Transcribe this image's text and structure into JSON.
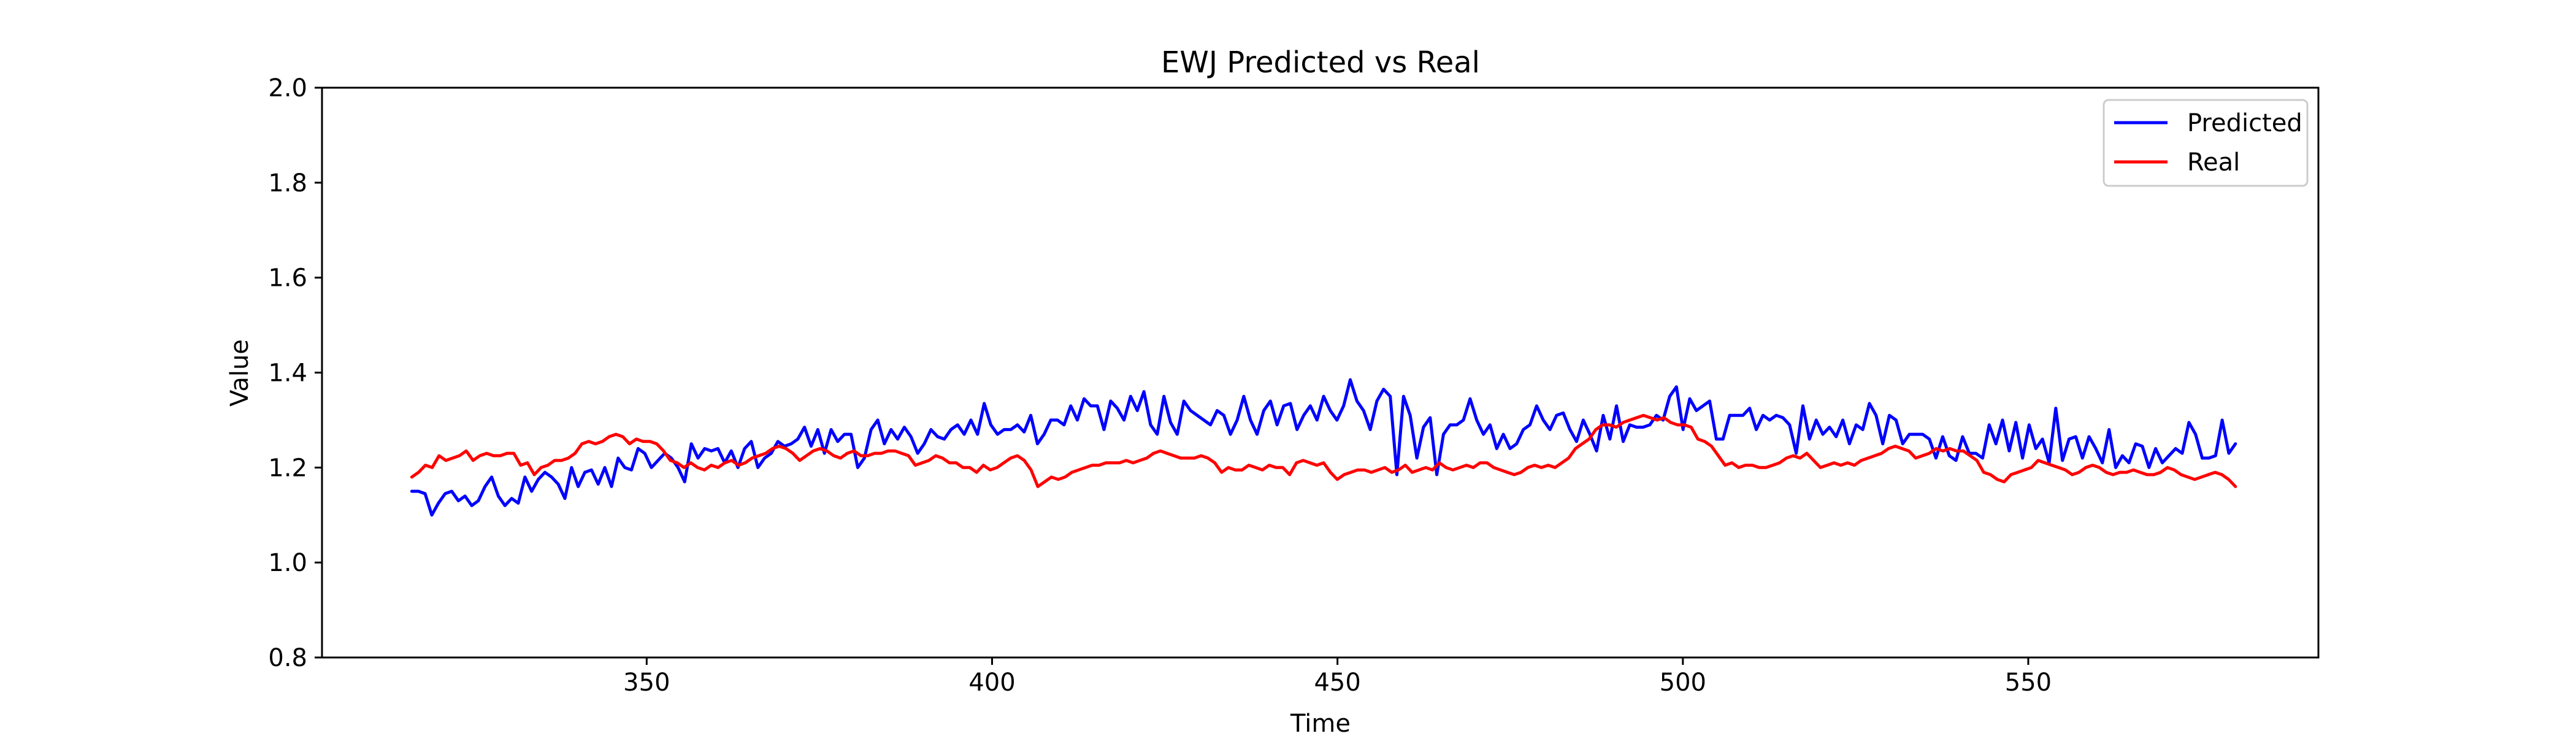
{
  "chart_data": {
    "type": "line",
    "title": "EWJ Predicted vs Real",
    "xlabel": "Time",
    "ylabel": "Value",
    "xlim": [
      303,
      592
    ],
    "ylim": [
      0.8,
      2.0
    ],
    "xticks": [
      350,
      400,
      450,
      500,
      550
    ],
    "yticks": [
      0.8,
      1.0,
      1.2,
      1.4,
      1.6,
      1.8,
      2.0
    ],
    "xtick_labels": [
      "350",
      "400",
      "450",
      "500",
      "550"
    ],
    "ytick_labels": [
      "0.8",
      "1.0",
      "1.2",
      "1.4",
      "1.6",
      "1.8",
      "2.0"
    ],
    "grid": false,
    "legend_position": "upper right",
    "x_start": 316,
    "x_end": 580,
    "series": [
      {
        "name": "Predicted",
        "color": "#0000ff",
        "values": [
          1.15,
          1.15,
          1.145,
          1.1,
          1.125,
          1.145,
          1.15,
          1.13,
          1.14,
          1.12,
          1.13,
          1.16,
          1.18,
          1.14,
          1.12,
          1.135,
          1.125,
          1.18,
          1.15,
          1.175,
          1.19,
          1.18,
          1.165,
          1.135,
          1.2,
          1.16,
          1.19,
          1.195,
          1.165,
          1.2,
          1.16,
          1.22,
          1.2,
          1.195,
          1.24,
          1.23,
          1.2,
          1.215,
          1.23,
          1.22,
          1.2,
          1.17,
          1.25,
          1.22,
          1.24,
          1.235,
          1.24,
          1.21,
          1.235,
          1.2,
          1.24,
          1.255,
          1.2,
          1.22,
          1.23,
          1.255,
          1.245,
          1.25,
          1.26,
          1.285,
          1.245,
          1.28,
          1.23,
          1.28,
          1.255,
          1.27,
          1.27,
          1.2,
          1.22,
          1.28,
          1.3,
          1.25,
          1.28,
          1.26,
          1.285,
          1.265,
          1.23,
          1.25,
          1.28,
          1.265,
          1.26,
          1.28,
          1.29,
          1.27,
          1.3,
          1.27,
          1.335,
          1.29,
          1.27,
          1.28,
          1.28,
          1.29,
          1.275,
          1.31,
          1.25,
          1.27,
          1.3,
          1.3,
          1.29,
          1.33,
          1.3,
          1.345,
          1.33,
          1.33,
          1.28,
          1.34,
          1.325,
          1.3,
          1.35,
          1.32,
          1.36,
          1.29,
          1.27,
          1.35,
          1.295,
          1.27,
          1.34,
          1.32,
          1.31,
          1.3,
          1.29,
          1.32,
          1.31,
          1.27,
          1.3,
          1.35,
          1.3,
          1.27,
          1.32,
          1.34,
          1.29,
          1.33,
          1.335,
          1.28,
          1.31,
          1.33,
          1.3,
          1.35,
          1.32,
          1.3,
          1.33,
          1.385,
          1.34,
          1.32,
          1.28,
          1.34,
          1.365,
          1.35,
          1.185,
          1.35,
          1.31,
          1.22,
          1.285,
          1.305,
          1.185,
          1.27,
          1.29,
          1.29,
          1.3,
          1.345,
          1.3,
          1.27,
          1.29,
          1.24,
          1.27,
          1.24,
          1.25,
          1.28,
          1.29,
          1.33,
          1.3,
          1.28,
          1.31,
          1.315,
          1.28,
          1.255,
          1.3,
          1.27,
          1.235,
          1.31,
          1.26,
          1.33,
          1.255,
          1.29,
          1.285,
          1.285,
          1.29,
          1.31,
          1.3,
          1.35,
          1.37,
          1.28,
          1.345,
          1.32,
          1.33,
          1.34,
          1.26,
          1.26,
          1.31,
          1.31,
          1.31,
          1.325,
          1.28,
          1.31,
          1.3,
          1.31,
          1.305,
          1.29,
          1.23,
          1.33,
          1.26,
          1.3,
          1.27,
          1.285,
          1.265,
          1.3,
          1.25,
          1.29,
          1.28,
          1.335,
          1.31,
          1.25,
          1.31,
          1.3,
          1.25,
          1.27,
          1.27,
          1.27,
          1.26,
          1.22,
          1.265,
          1.225,
          1.215,
          1.265,
          1.23,
          1.23,
          1.22,
          1.29,
          1.25,
          1.3,
          1.235,
          1.295,
          1.22,
          1.29,
          1.24,
          1.26,
          1.21,
          1.325,
          1.215,
          1.26,
          1.265,
          1.22,
          1.265,
          1.24,
          1.21,
          1.28,
          1.2,
          1.225,
          1.21,
          1.25,
          1.245,
          1.2,
          1.24,
          1.21,
          1.225,
          1.24,
          1.23,
          1.295,
          1.27,
          1.22,
          1.22,
          1.225,
          1.3,
          1.23,
          1.25
        ]
      },
      {
        "name": "Real",
        "color": "#ff0000",
        "values": [
          1.18,
          1.19,
          1.205,
          1.2,
          1.225,
          1.215,
          1.22,
          1.225,
          1.235,
          1.215,
          1.225,
          1.23,
          1.225,
          1.225,
          1.23,
          1.23,
          1.205,
          1.21,
          1.185,
          1.2,
          1.205,
          1.215,
          1.215,
          1.22,
          1.23,
          1.25,
          1.255,
          1.25,
          1.255,
          1.265,
          1.27,
          1.265,
          1.25,
          1.26,
          1.255,
          1.255,
          1.25,
          1.235,
          1.215,
          1.21,
          1.2,
          1.21,
          1.2,
          1.195,
          1.205,
          1.2,
          1.21,
          1.215,
          1.205,
          1.21,
          1.22,
          1.225,
          1.23,
          1.24,
          1.245,
          1.24,
          1.23,
          1.215,
          1.225,
          1.235,
          1.24,
          1.235,
          1.225,
          1.22,
          1.23,
          1.235,
          1.225,
          1.225,
          1.23,
          1.23,
          1.235,
          1.235,
          1.23,
          1.225,
          1.205,
          1.21,
          1.215,
          1.225,
          1.22,
          1.21,
          1.21,
          1.2,
          1.2,
          1.19,
          1.205,
          1.195,
          1.2,
          1.21,
          1.22,
          1.225,
          1.215,
          1.195,
          1.16,
          1.17,
          1.18,
          1.175,
          1.18,
          1.19,
          1.195,
          1.2,
          1.205,
          1.205,
          1.21,
          1.21,
          1.21,
          1.215,
          1.21,
          1.215,
          1.22,
          1.23,
          1.235,
          1.23,
          1.225,
          1.22,
          1.22,
          1.22,
          1.225,
          1.22,
          1.21,
          1.19,
          1.2,
          1.195,
          1.195,
          1.205,
          1.2,
          1.195,
          1.205,
          1.2,
          1.2,
          1.185,
          1.21,
          1.215,
          1.21,
          1.205,
          1.21,
          1.19,
          1.175,
          1.185,
          1.19,
          1.195,
          1.195,
          1.19,
          1.195,
          1.2,
          1.19,
          1.195,
          1.205,
          1.19,
          1.195,
          1.2,
          1.195,
          1.21,
          1.2,
          1.195,
          1.2,
          1.205,
          1.2,
          1.21,
          1.21,
          1.2,
          1.195,
          1.19,
          1.185,
          1.19,
          1.2,
          1.205,
          1.2,
          1.205,
          1.2,
          1.21,
          1.22,
          1.24,
          1.25,
          1.26,
          1.28,
          1.29,
          1.29,
          1.285,
          1.295,
          1.3,
          1.305,
          1.31,
          1.305,
          1.3,
          1.305,
          1.295,
          1.29,
          1.29,
          1.285,
          1.26,
          1.255,
          1.245,
          1.225,
          1.205,
          1.21,
          1.2,
          1.205,
          1.205,
          1.2,
          1.2,
          1.205,
          1.21,
          1.22,
          1.225,
          1.22,
          1.23,
          1.215,
          1.2,
          1.205,
          1.21,
          1.205,
          1.21,
          1.205,
          1.215,
          1.22,
          1.225,
          1.23,
          1.24,
          1.245,
          1.24,
          1.235,
          1.22,
          1.225,
          1.23,
          1.24,
          1.235,
          1.24,
          1.235,
          1.235,
          1.225,
          1.215,
          1.19,
          1.185,
          1.175,
          1.17,
          1.185,
          1.19,
          1.195,
          1.2,
          1.215,
          1.21,
          1.205,
          1.2,
          1.195,
          1.185,
          1.19,
          1.2,
          1.205,
          1.2,
          1.19,
          1.185,
          1.19,
          1.19,
          1.195,
          1.19,
          1.185,
          1.185,
          1.19,
          1.2,
          1.195,
          1.185,
          1.18,
          1.175,
          1.18,
          1.185,
          1.19,
          1.185,
          1.175,
          1.16
        ]
      }
    ]
  }
}
